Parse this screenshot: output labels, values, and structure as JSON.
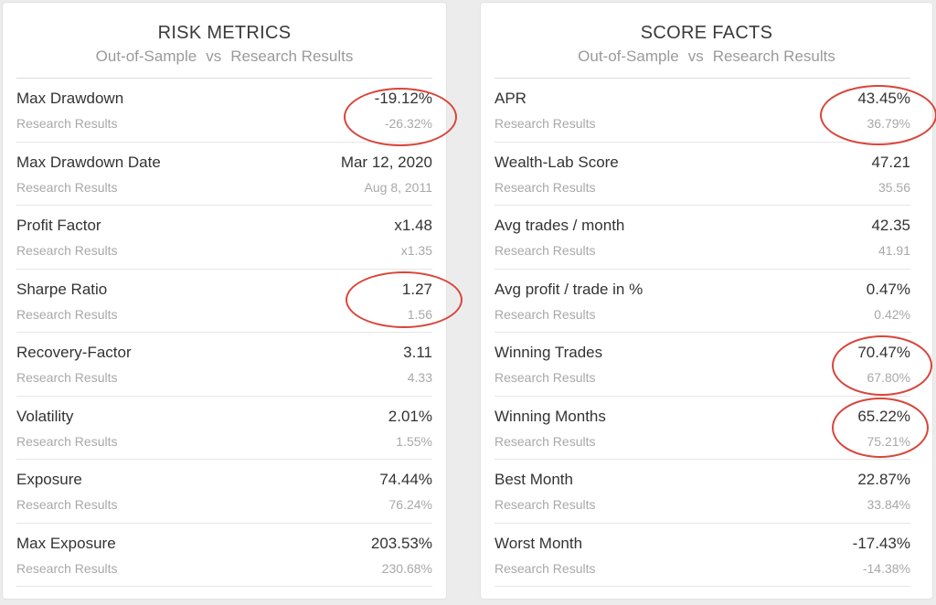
{
  "annotation_color": "#d9453a",
  "risk_metrics": {
    "title": "RISK METRICS",
    "subtitle_left": "Out-of-Sample",
    "subtitle_vs": "vs",
    "subtitle_right": "Research Results",
    "rows": [
      {
        "label": "Max Drawdown",
        "sublabel": "Research Results",
        "value": "-19.12%",
        "subvalue": "-26.32%"
      },
      {
        "label": "Max Drawdown Date",
        "sublabel": "Research Results",
        "value": "Mar 12, 2020",
        "subvalue": "Aug 8, 2011"
      },
      {
        "label": "Profit Factor",
        "sublabel": "Research Results",
        "value": "x1.48",
        "subvalue": "x1.35"
      },
      {
        "label": "Sharpe Ratio",
        "sublabel": "Research Results",
        "value": "1.27",
        "subvalue": "1.56"
      },
      {
        "label": "Recovery-Factor",
        "sublabel": "Research Results",
        "value": "3.11",
        "subvalue": "4.33"
      },
      {
        "label": "Volatility",
        "sublabel": "Research Results",
        "value": "2.01%",
        "subvalue": "1.55%"
      },
      {
        "label": "Exposure",
        "sublabel": "Research Results",
        "value": "74.44%",
        "subvalue": "76.24%"
      },
      {
        "label": "Max Exposure",
        "sublabel": "Research Results",
        "value": "203.53%",
        "subvalue": "230.68%"
      }
    ]
  },
  "score_facts": {
    "title": "SCORE FACTS",
    "subtitle_left": "Out-of-Sample",
    "subtitle_vs": "vs",
    "subtitle_right": "Research Results",
    "rows": [
      {
        "label": "APR",
        "sublabel": "Research Results",
        "value": "43.45%",
        "subvalue": "36.79%"
      },
      {
        "label": "Wealth-Lab Score",
        "sublabel": "Research Results",
        "value": "47.21",
        "subvalue": "35.56"
      },
      {
        "label": "Avg trades / month",
        "sublabel": "Research Results",
        "value": "42.35",
        "subvalue": "41.91"
      },
      {
        "label": "Avg profit / trade in %",
        "sublabel": "Research Results",
        "value": "0.47%",
        "subvalue": "0.42%"
      },
      {
        "label": "Winning Trades",
        "sublabel": "Research Results",
        "value": "70.47%",
        "subvalue": "67.80%"
      },
      {
        "label": "Winning Months",
        "sublabel": "Research Results",
        "value": "65.22%",
        "subvalue": "75.21%"
      },
      {
        "label": "Best Month",
        "sublabel": "Research Results",
        "value": "22.87%",
        "subvalue": "33.84%"
      },
      {
        "label": "Worst Month",
        "sublabel": "Research Results",
        "value": "-17.43%",
        "subvalue": "-14.38%"
      }
    ]
  }
}
